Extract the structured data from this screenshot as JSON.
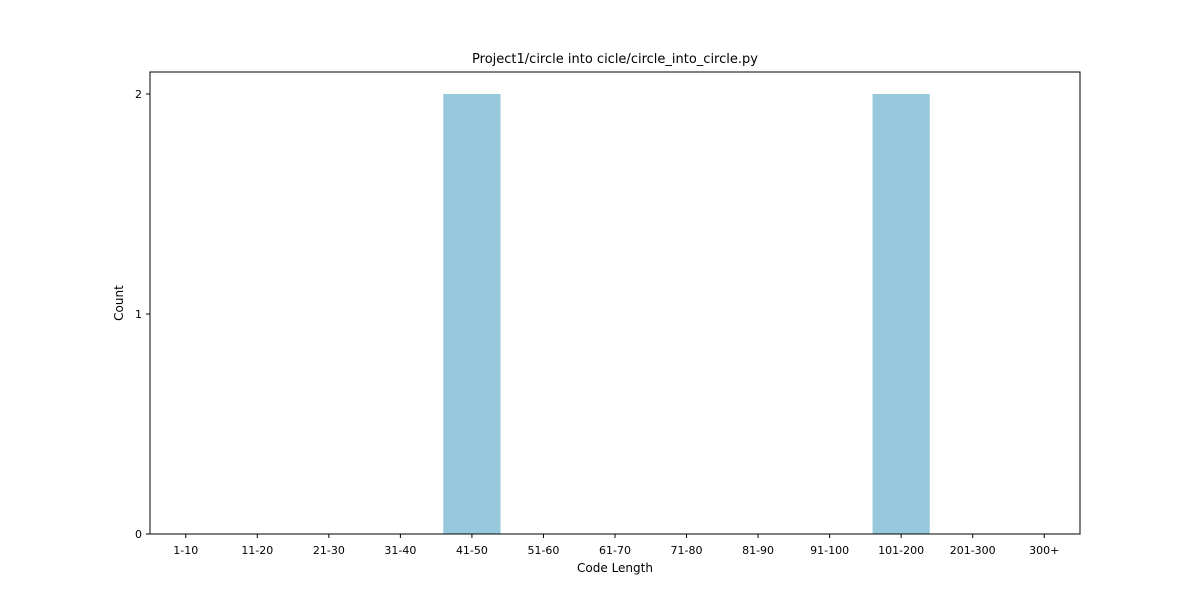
{
  "chart_data": {
    "type": "bar",
    "title": "Project1/circle into cicle/circle_into_circle.py",
    "xlabel": "Code Length",
    "ylabel": "Count",
    "categories": [
      "1-10",
      "11-20",
      "21-30",
      "31-40",
      "41-50",
      "51-60",
      "61-70",
      "71-80",
      "81-90",
      "91-100",
      "101-200",
      "201-300",
      "300+"
    ],
    "values": [
      0,
      0,
      0,
      0,
      2,
      0,
      0,
      0,
      0,
      0,
      2,
      0,
      0
    ],
    "yticks": [
      0,
      1,
      2
    ],
    "ylim": [
      0,
      2.1
    ],
    "grid": false,
    "bar_color": "#96c9dc"
  }
}
